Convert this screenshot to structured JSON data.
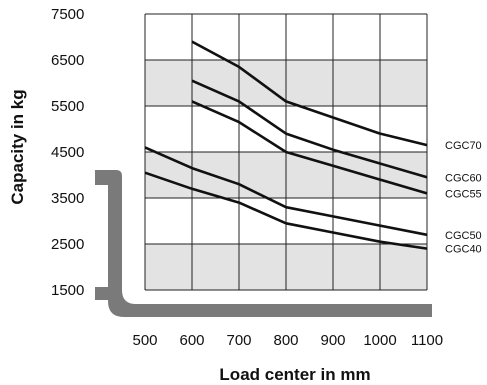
{
  "chart_data": {
    "type": "line",
    "title": "",
    "xlabel": "Load center in mm",
    "ylabel": "Capacity in kg",
    "x_ticks": [
      "500",
      "600",
      "700",
      "800",
      "900",
      "1000",
      "1100"
    ],
    "y_ticks": [
      "7500",
      "6500",
      "5500",
      "4500",
      "3500",
      "2500",
      "1500"
    ],
    "xlim": [
      500,
      1100
    ],
    "ylim": [
      1500,
      7500
    ],
    "grid": true,
    "shaded_bands": [
      [
        5500,
        6500
      ],
      [
        3500,
        4500
      ],
      [
        1500,
        2500
      ]
    ],
    "band_color": "#e3e3e3",
    "line_color": "#111111",
    "decoration_color": "#7a7a7a",
    "decoration": "fork-icon",
    "series": [
      {
        "name": "CGC70",
        "x": [
          600,
          700,
          800,
          900,
          1000,
          1100
        ],
        "y": [
          6900,
          6350,
          5600,
          5250,
          4900,
          4650
        ]
      },
      {
        "name": "CGC60",
        "x": [
          600,
          700,
          800,
          900,
          1000,
          1100
        ],
        "y": [
          6050,
          5600,
          4900,
          4550,
          4250,
          3950
        ]
      },
      {
        "name": "CGC55",
        "x": [
          600,
          700,
          800,
          900,
          1000,
          1100
        ],
        "y": [
          5600,
          5150,
          4500,
          4200,
          3900,
          3600
        ]
      },
      {
        "name": "CGC50",
        "x": [
          500,
          600,
          700,
          800,
          900,
          1000,
          1100
        ],
        "y": [
          4600,
          4150,
          3800,
          3300,
          3100,
          2900,
          2700
        ]
      },
      {
        "name": "CGC40",
        "x": [
          500,
          600,
          700,
          800,
          900,
          1000,
          1100
        ],
        "y": [
          4050,
          3700,
          3400,
          2950,
          2750,
          2550,
          2400
        ]
      }
    ]
  }
}
